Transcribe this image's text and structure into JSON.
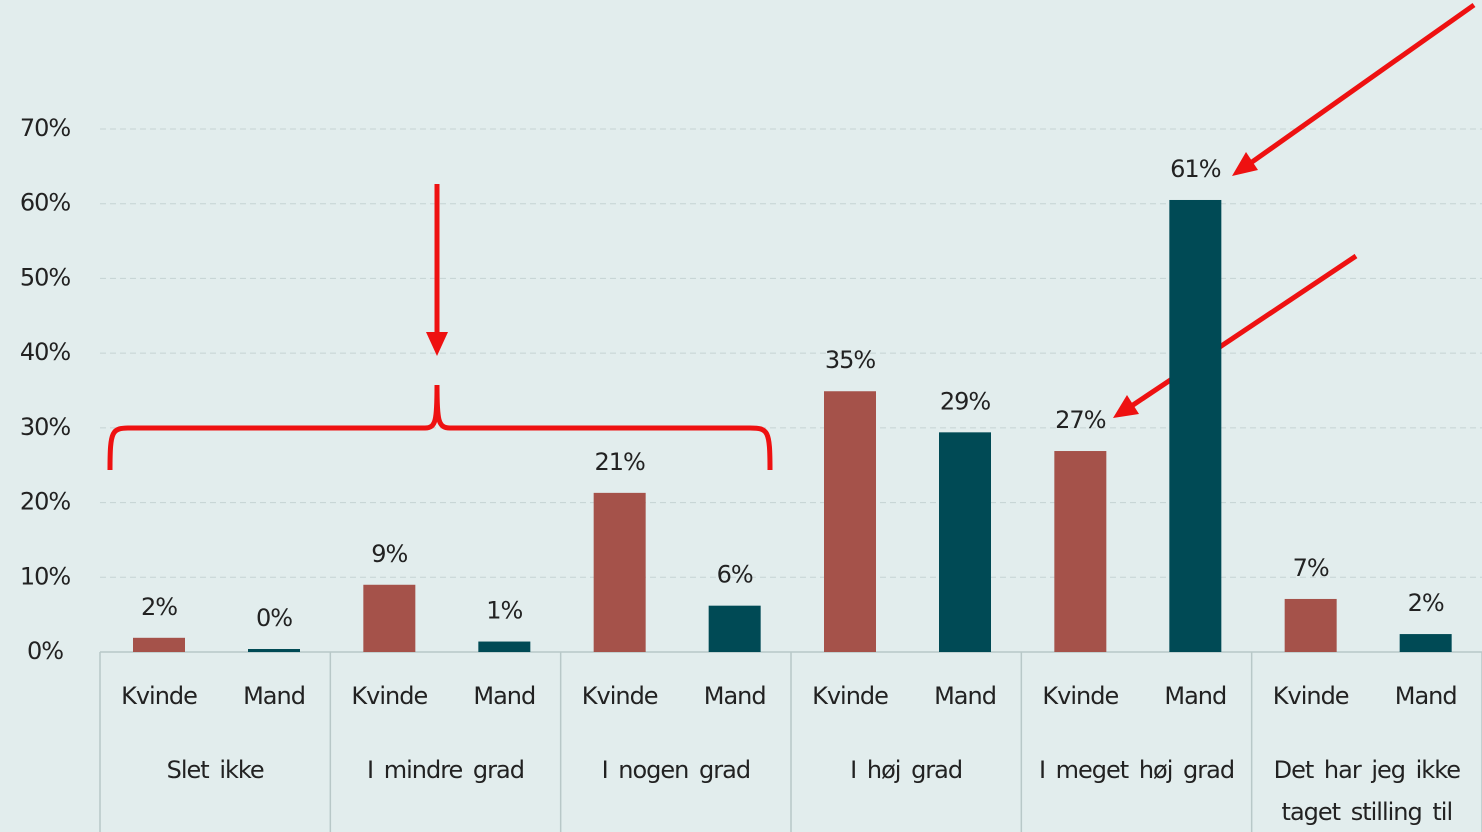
{
  "chart_data": {
    "type": "bar",
    "categories": [
      "Slet ikke",
      "I mindre grad",
      "I nogen grad",
      "I høj grad",
      "I meget høj grad",
      "Det har jeg ikke taget stilling til"
    ],
    "series": [
      {
        "name": "Kvinde",
        "color": "#a5524a",
        "values": [
          1.9,
          9,
          21.3,
          34.9,
          26.9,
          7.1
        ],
        "value_labels": [
          "2%",
          "9%",
          "21%",
          "35%",
          "27%",
          "7%"
        ]
      },
      {
        "name": "Mand",
        "color": "#004a55",
        "values": [
          0.4,
          1.4,
          6.2,
          29.4,
          60.5,
          2.4
        ],
        "value_labels": [
          "0%",
          "1%",
          "6%",
          "29%",
          "61%",
          "2%"
        ]
      }
    ],
    "ylim": [
      0,
      70
    ],
    "yticks": [
      {
        "value": 0,
        "label": "0%"
      },
      {
        "value": 10,
        "label": "10%"
      },
      {
        "value": 20,
        "label": "20%"
      },
      {
        "value": 30,
        "label": "30%"
      },
      {
        "value": 40,
        "label": "40%"
      },
      {
        "value": 50,
        "label": "50%"
      },
      {
        "value": 60,
        "label": "60%"
      },
      {
        "value": 70,
        "label": "70%"
      }
    ],
    "grid": true
  }
}
